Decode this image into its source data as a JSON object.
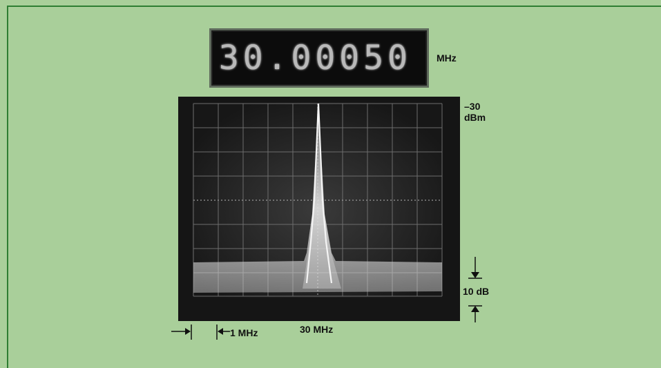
{
  "counter": {
    "reading": "30.00050",
    "unit": "MHz"
  },
  "spectrum": {
    "reference_level_value": "–30",
    "reference_level_unit": "dBm",
    "vertical_scale": "10 dB",
    "horizontal_scale": "1 MHz",
    "center_frequency": "30 MHz"
  },
  "colors": {
    "background": "#a9cf9a",
    "border": "#2e7d32",
    "screen": "#151515",
    "trace": "#f4f4f4",
    "graticule": "#6d6d6d"
  }
}
